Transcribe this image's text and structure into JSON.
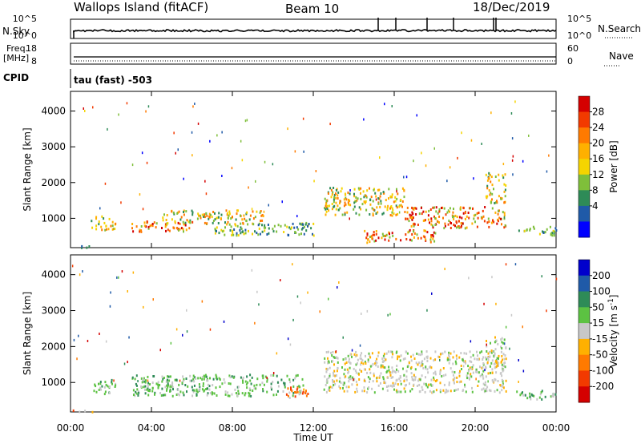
{
  "header": {
    "station": "Wallops Island (fitACF)",
    "beam": "Beam 10",
    "date": "18/Dec/2019"
  },
  "strips": {
    "nsky_label": "N.Sky",
    "nsky_ticks": [
      "10^5",
      "10^0"
    ],
    "nsearch_label": "N.Search",
    "nsearch_ticks": [
      "10^5",
      "10^0"
    ],
    "freq_label": "Freq.",
    "freq_unit": "[MHz]",
    "freq_ticks": [
      "18",
      "8"
    ],
    "nave_label": "Nave",
    "nave_ticks": [
      "60",
      "0"
    ],
    "cpid_label": "CPID",
    "cpid_text": "tau (fast) -503"
  },
  "chart_data": [
    {
      "type": "heatmap",
      "parameter": "Power",
      "ylabel": "Slant Range [km]",
      "xlabel": "Time UT",
      "x_ticks": [
        "00:00",
        "04:00",
        "08:00",
        "12:00",
        "16:00",
        "20:00",
        "00:00"
      ],
      "x_range_hours": [
        0,
        24
      ],
      "y_ticks": [
        1000,
        2000,
        3000,
        4000
      ],
      "ylim": [
        180,
        4550
      ],
      "colorbar": {
        "label": "Power [dB]",
        "ticks": [
          "28",
          "24",
          "20",
          "16",
          "12",
          "8",
          "4"
        ],
        "colors": [
          "#d40000",
          "#f23a00",
          "#ff7a00",
          "#ffb000",
          "#f5d400",
          "#7fbf3a",
          "#2e8b57",
          "#1f5aa8",
          "#0000ff"
        ]
      },
      "regions": [
        {
          "t": [
            0.0,
            1.2
          ],
          "r": [
            200,
            260
          ],
          "level": "low"
        },
        {
          "t": [
            1.0,
            2.2
          ],
          "r": [
            700,
            1100
          ],
          "level": "mid"
        },
        {
          "t": [
            3.0,
            6.0
          ],
          "r": [
            650,
            950
          ],
          "level": "high"
        },
        {
          "t": [
            4.5,
            9.5
          ],
          "r": [
            850,
            1250
          ],
          "level": "mid"
        },
        {
          "t": [
            7.0,
            12.0
          ],
          "r": [
            550,
            900
          ],
          "level": "low"
        },
        {
          "t": [
            12.5,
            16.5
          ],
          "r": [
            1100,
            1900
          ],
          "level": "mid"
        },
        {
          "t": [
            14.5,
            18.0
          ],
          "r": [
            350,
            700
          ],
          "level": "high"
        },
        {
          "t": [
            16.5,
            21.5
          ],
          "r": [
            750,
            1350
          ],
          "level": "high"
        },
        {
          "t": [
            20.5,
            21.5
          ],
          "r": [
            1450,
            2300
          ],
          "level": "mid"
        },
        {
          "t": [
            22.0,
            24.0
          ],
          "r": [
            550,
            800
          ],
          "level": "low"
        }
      ]
    },
    {
      "type": "heatmap",
      "parameter": "Velocity",
      "ylabel": "Slant Range [km]",
      "xlabel": "Time UT",
      "x_ticks": [
        "00:00",
        "04:00",
        "08:00",
        "12:00",
        "16:00",
        "20:00",
        "00:00"
      ],
      "x_range_hours": [
        0,
        24
      ],
      "y_ticks": [
        1000,
        2000,
        3000,
        4000
      ],
      "ylim": [
        180,
        4550
      ],
      "colorbar": {
        "label": "Velocity [m s",
        "label_exp": "-1",
        "label_close": "]",
        "ticks": [
          "200",
          "100",
          "50",
          "15",
          "-15",
          "-50",
          "-100",
          "-200"
        ],
        "colors": [
          "#0000cc",
          "#1f5aa8",
          "#2e8b57",
          "#5cc242",
          "#c8c8c8",
          "#ffb000",
          "#ff7a00",
          "#f23a00",
          "#d40000"
        ]
      },
      "regions": [
        {
          "t": [
            0.0,
            1.2
          ],
          "r": [
            200,
            260
          ],
          "level": "orange"
        },
        {
          "t": [
            1.0,
            2.2
          ],
          "r": [
            700,
            1100
          ],
          "level": "green"
        },
        {
          "t": [
            3.0,
            11.5
          ],
          "r": [
            650,
            1250
          ],
          "level": "green"
        },
        {
          "t": [
            10.5,
            12.0
          ],
          "r": [
            600,
            900
          ],
          "level": "orange"
        },
        {
          "t": [
            12.5,
            21.5
          ],
          "r": [
            750,
            1900
          ],
          "level": "gray"
        },
        {
          "t": [
            20.5,
            21.5
          ],
          "r": [
            1450,
            2300
          ],
          "level": "gray"
        },
        {
          "t": [
            22.0,
            24.0
          ],
          "r": [
            550,
            800
          ],
          "level": "green"
        }
      ]
    }
  ]
}
